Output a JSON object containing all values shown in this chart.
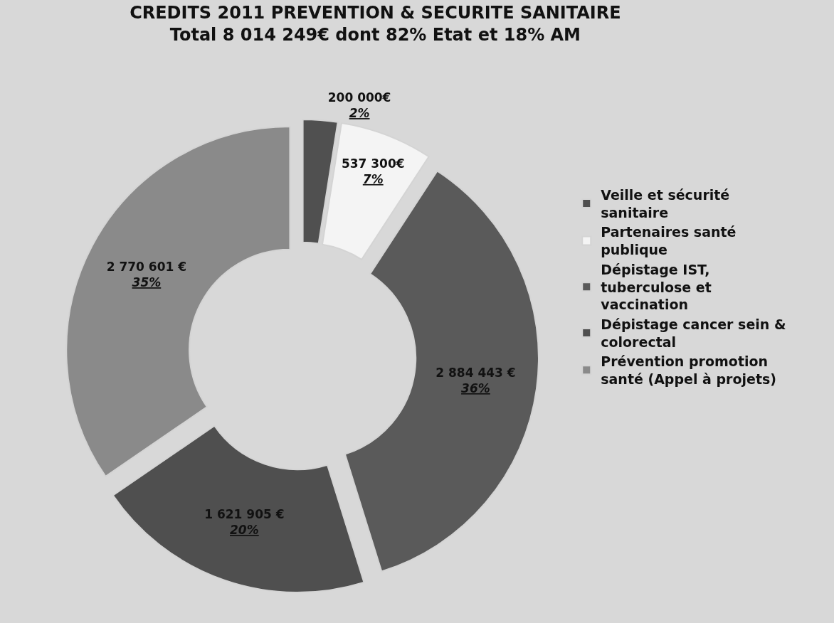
{
  "chart_data": {
    "type": "donut",
    "title": "CREDITS 2011 PREVENTION & SECURITE SANITAIRE",
    "subtitle": "Total 8 014 249€ dont 82% Etat et 18% AM",
    "categories": [
      "Veille et sécurité sanitaire",
      "Partenaires santé publique",
      "Dépistage IST, tuberculose et vaccination",
      "Dépistage cancer sein & colorectal",
      "Prévention promotion santé (Appel à projets)"
    ],
    "values": [
      200000,
      537300,
      2884443,
      1621905,
      2770601
    ],
    "colors": [
      "#505050",
      "#f4f4f4",
      "#5a5a5a",
      "#4f4f4f",
      "#8a8a8a"
    ],
    "value_labels": [
      "200 000€\n2%",
      "537 300€\n7%",
      "2 884 443 €\n36%",
      "1 621 905 €\n20%",
      "2 770 601 €\n35%"
    ],
    "legend": "right"
  }
}
